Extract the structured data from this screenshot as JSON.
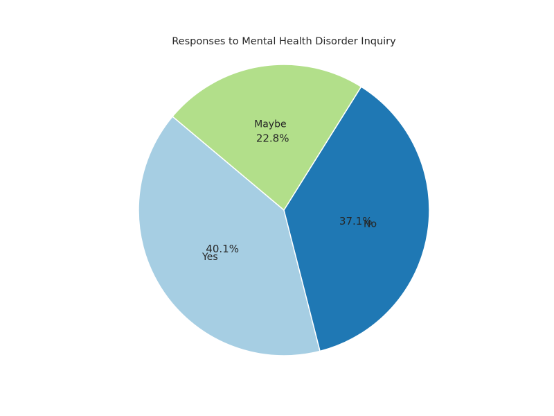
{
  "chart_data": {
    "type": "pie",
    "title": "Responses to Mental Health Disorder Inquiry",
    "slices": [
      {
        "label": "Yes",
        "percent": 40.1,
        "percent_label": "40.1%",
        "color": "#a6cee3"
      },
      {
        "label": "No",
        "percent": 37.1,
        "percent_label": "37.1%",
        "color": "#1f78b4"
      },
      {
        "label": "Maybe",
        "percent": 22.8,
        "percent_label": "22.8%",
        "color": "#b2df8a"
      }
    ],
    "start_angle_deg": 140,
    "direction": "counterclockwise",
    "legend": "none"
  }
}
